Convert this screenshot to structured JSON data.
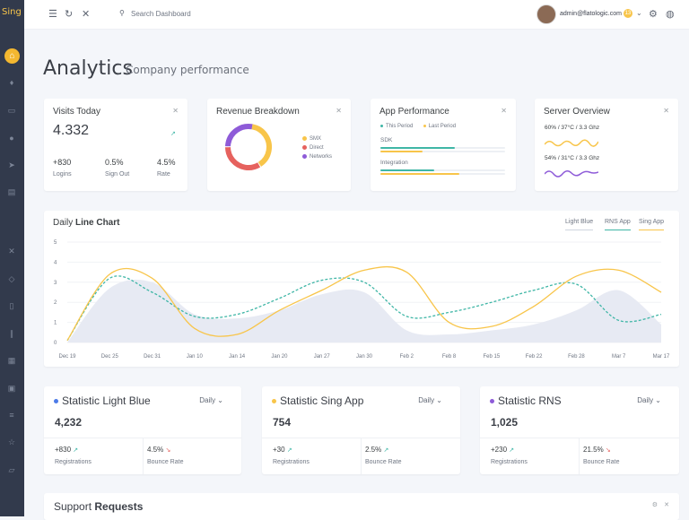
{
  "brand": "Sing",
  "topbar": {
    "search_placeholder": "Search Dashboard",
    "user_email": "admin@flatologic.com",
    "notification_count": "13"
  },
  "page": {
    "title": "Analytics",
    "subtitle": "Company performance"
  },
  "visits_card": {
    "title": "Visits Today",
    "value": "4.332",
    "stats": [
      {
        "value": "+830",
        "label": "Logins"
      },
      {
        "value": "0.5%",
        "label": "Sign Out"
      },
      {
        "value": "4.5%",
        "label": "Rate"
      }
    ]
  },
  "revenue_card": {
    "title": "Revenue Breakdown",
    "legend": [
      "SMX",
      "Direct",
      "Networks"
    ],
    "colors": [
      "#f8c54a",
      "#e6625e",
      "#8e5bd8"
    ]
  },
  "app_performance": {
    "title": "App Performance",
    "legend": [
      "This Period",
      "Last Period"
    ],
    "rows": [
      {
        "label": "SDK",
        "this_period": 0.6,
        "last_period": 0.34
      },
      {
        "label": "Integration",
        "this_period": 0.43,
        "last_period": 0.63
      }
    ]
  },
  "server_overview": {
    "title": "Server Overview",
    "rows": [
      {
        "label": "60% / 37°C / 3.3 Ghz",
        "color": "#f8c54a"
      },
      {
        "label": "54% / 31°C / 3.3 Ghz",
        "color": "#8e5bd8"
      }
    ]
  },
  "line_chart": {
    "title_prefix": "Daily",
    "title_bold": "Line Chart",
    "tabs": [
      {
        "label": "Light Blue",
        "color": "#cfd5df"
      },
      {
        "label": "RNS App",
        "color": "#3fb6a6"
      },
      {
        "label": "Sing App",
        "color": "#f8c54a"
      }
    ]
  },
  "chart_data": {
    "type": "line",
    "x": [
      "Dec 19",
      "Dec 25",
      "Dec 31",
      "Jan 10",
      "Jan 14",
      "Jan 20",
      "Jan 27",
      "Jan 30",
      "Feb 2",
      "Feb 8",
      "Feb 15",
      "Feb 22",
      "Feb 28",
      "Mar 7",
      "Mar 17"
    ],
    "ylim": [
      0,
      5
    ],
    "yticks": [
      0,
      1,
      2,
      3,
      4,
      5
    ],
    "series": [
      {
        "name": "Light Blue",
        "color": "#e7eaf3",
        "values": [
          0,
          2.7,
          3,
          1.4,
          1.2,
          1.6,
          2.4,
          2.5,
          0.6,
          0.4,
          0.6,
          0.9,
          1.6,
          2.6,
          0.9
        ]
      },
      {
        "name": "RNS App",
        "color": "#3fb6a6",
        "values": [
          0.1,
          3.2,
          2.5,
          1.3,
          1.4,
          2.2,
          3.1,
          3.0,
          1.3,
          1.5,
          2.0,
          2.6,
          2.9,
          1.1,
          1.4
        ]
      },
      {
        "name": "Sing App",
        "color": "#f8c54a",
        "values": [
          0.1,
          3.4,
          3.2,
          0.7,
          0.4,
          1.6,
          2.6,
          3.6,
          3.5,
          1.0,
          0.8,
          1.8,
          3.3,
          3.6,
          2.5
        ]
      }
    ]
  },
  "stat_cards": [
    {
      "title": "Statistic Light Blue",
      "dot_color": "#4c7be8",
      "period": "Daily",
      "value": "4,232",
      "left_value": "+830",
      "left_label": "Registrations",
      "right_value": "4.5%",
      "right_label": "Bounce Rate"
    },
    {
      "title": "Statistic Sing App",
      "dot_color": "#f8c54a",
      "period": "Daily",
      "value": "754",
      "left_value": "+30",
      "left_label": "Registrations",
      "right_value": "2.5%",
      "right_label": "Bounce Rate"
    },
    {
      "title": "Statistic RNS",
      "dot_color": "#8e5bd8",
      "period": "Daily",
      "value": "1,025",
      "left_value": "+230",
      "left_label": "Registrations",
      "right_value": "21.5%",
      "right_label": "Bounce Rate"
    }
  ],
  "support": {
    "title_prefix": "Support",
    "title_bold": "Requests"
  }
}
